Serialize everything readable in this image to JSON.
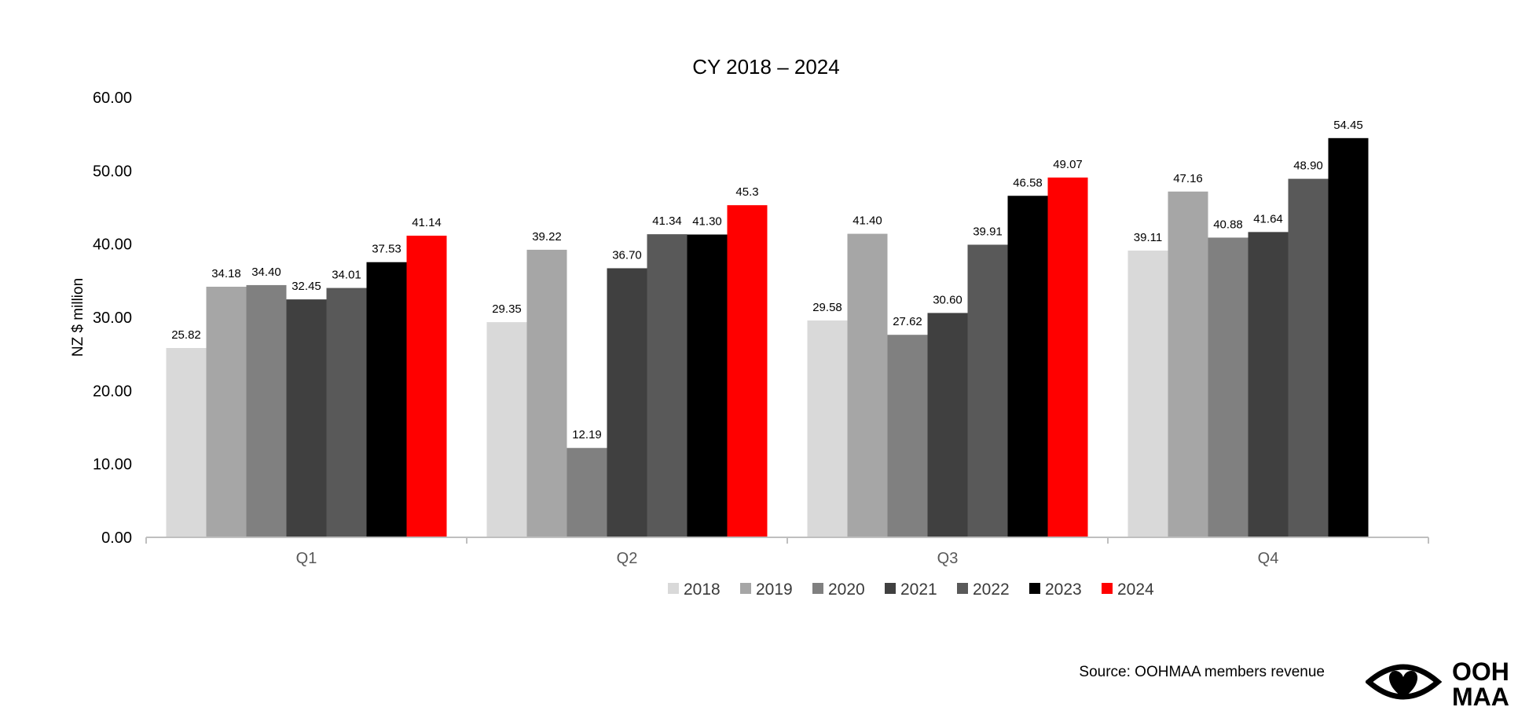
{
  "chart_data": {
    "type": "bar",
    "title": "CY 2018 – 2024",
    "ylabel": "NZ $ million",
    "xlabel": "",
    "ylim": [
      0,
      60
    ],
    "yticks": [
      "0.00",
      "10.00",
      "20.00",
      "30.00",
      "40.00",
      "50.00",
      "60.00"
    ],
    "categories": [
      "Q1",
      "Q2",
      "Q3",
      "Q4"
    ],
    "grid": false,
    "legend_position": "bottom",
    "series": [
      {
        "name": "2018",
        "color": "#d9d9d9",
        "values": [
          25.82,
          29.35,
          29.58,
          39.11
        ],
        "labels": [
          "25.82",
          "29.35",
          "29.58",
          "39.11"
        ]
      },
      {
        "name": "2019",
        "color": "#a6a6a6",
        "values": [
          34.18,
          39.22,
          41.4,
          47.16
        ],
        "labels": [
          "34.18",
          "39.22",
          "41.40",
          "47.16"
        ]
      },
      {
        "name": "2020",
        "color": "#808080",
        "values": [
          34.4,
          12.19,
          27.62,
          40.88
        ],
        "labels": [
          "34.40",
          "12.19",
          "27.62",
          "40.88"
        ]
      },
      {
        "name": "2021",
        "color": "#404040",
        "values": [
          32.45,
          36.7,
          30.6,
          41.64
        ],
        "labels": [
          "32.45",
          "36.70",
          "30.60",
          "41.64"
        ]
      },
      {
        "name": "2022",
        "color": "#595959",
        "values": [
          34.01,
          41.34,
          39.91,
          48.9
        ],
        "labels": [
          "34.01",
          "41.34",
          "39.91",
          "48.90"
        ]
      },
      {
        "name": "2023",
        "color": "#000000",
        "values": [
          37.53,
          41.3,
          46.58,
          54.45
        ],
        "labels": [
          "37.53",
          "41.30",
          "46.58",
          "54.45"
        ]
      },
      {
        "name": "2024",
        "color": "#ff0000",
        "values": [
          41.14,
          45.3,
          49.07,
          null
        ],
        "labels": [
          "41.14",
          "45.3",
          "49.07",
          ""
        ]
      }
    ]
  },
  "source": "Source: OOHMAA members revenue",
  "logo": {
    "line1": "OOH",
    "line2": "MAA",
    "icon": "eye-heart-icon"
  }
}
